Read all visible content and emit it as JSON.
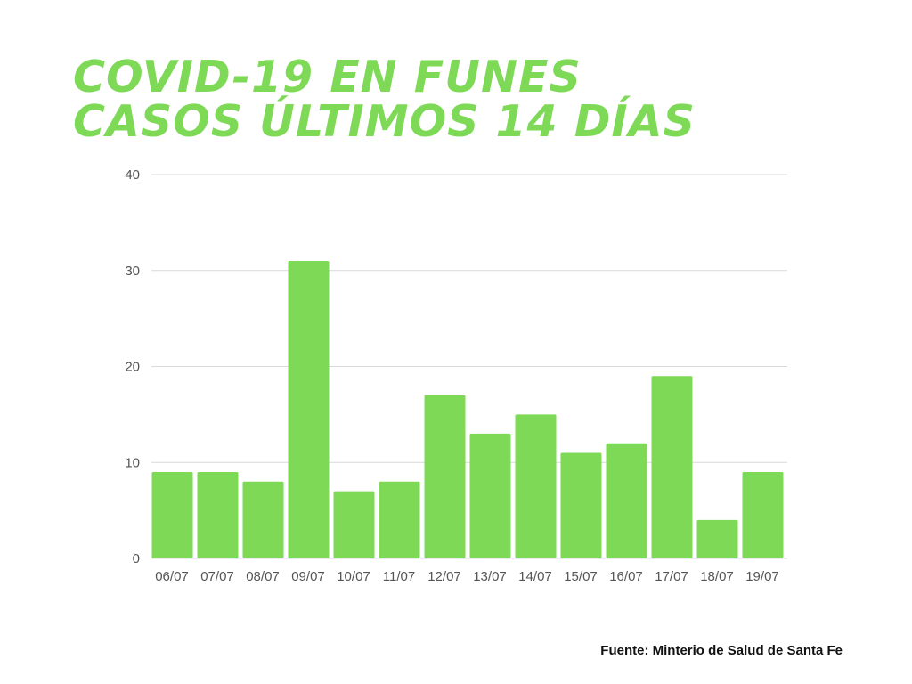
{
  "title_lines": [
    "COVID-19 EN FUNES",
    "CASOS ÚLTIMOS 14 DÍAS"
  ],
  "source": "Fuente: Minterio de Salud de Santa Fe",
  "colors": {
    "title": "#7ed957",
    "bar": "#7ed957",
    "grid": "#d9d9d9",
    "axis_text": "#555555",
    "source": "#111111"
  },
  "chart_data": {
    "type": "bar",
    "title": "COVID-19 EN FUNES CASOS ÚLTIMOS 14 DÍAS",
    "xlabel": "",
    "ylabel": "",
    "categories": [
      "06/07",
      "07/07",
      "08/07",
      "09/07",
      "10/07",
      "11/07",
      "12/07",
      "13/07",
      "14/07",
      "15/07",
      "16/07",
      "17/07",
      "18/07",
      "19/07"
    ],
    "values": [
      9,
      9,
      8,
      31,
      7,
      8,
      17,
      13,
      15,
      11,
      12,
      19,
      4,
      9
    ],
    "ylim": [
      0,
      40
    ],
    "yticks": [
      0,
      10,
      20,
      30,
      40
    ],
    "grid": true,
    "legend": "none"
  }
}
